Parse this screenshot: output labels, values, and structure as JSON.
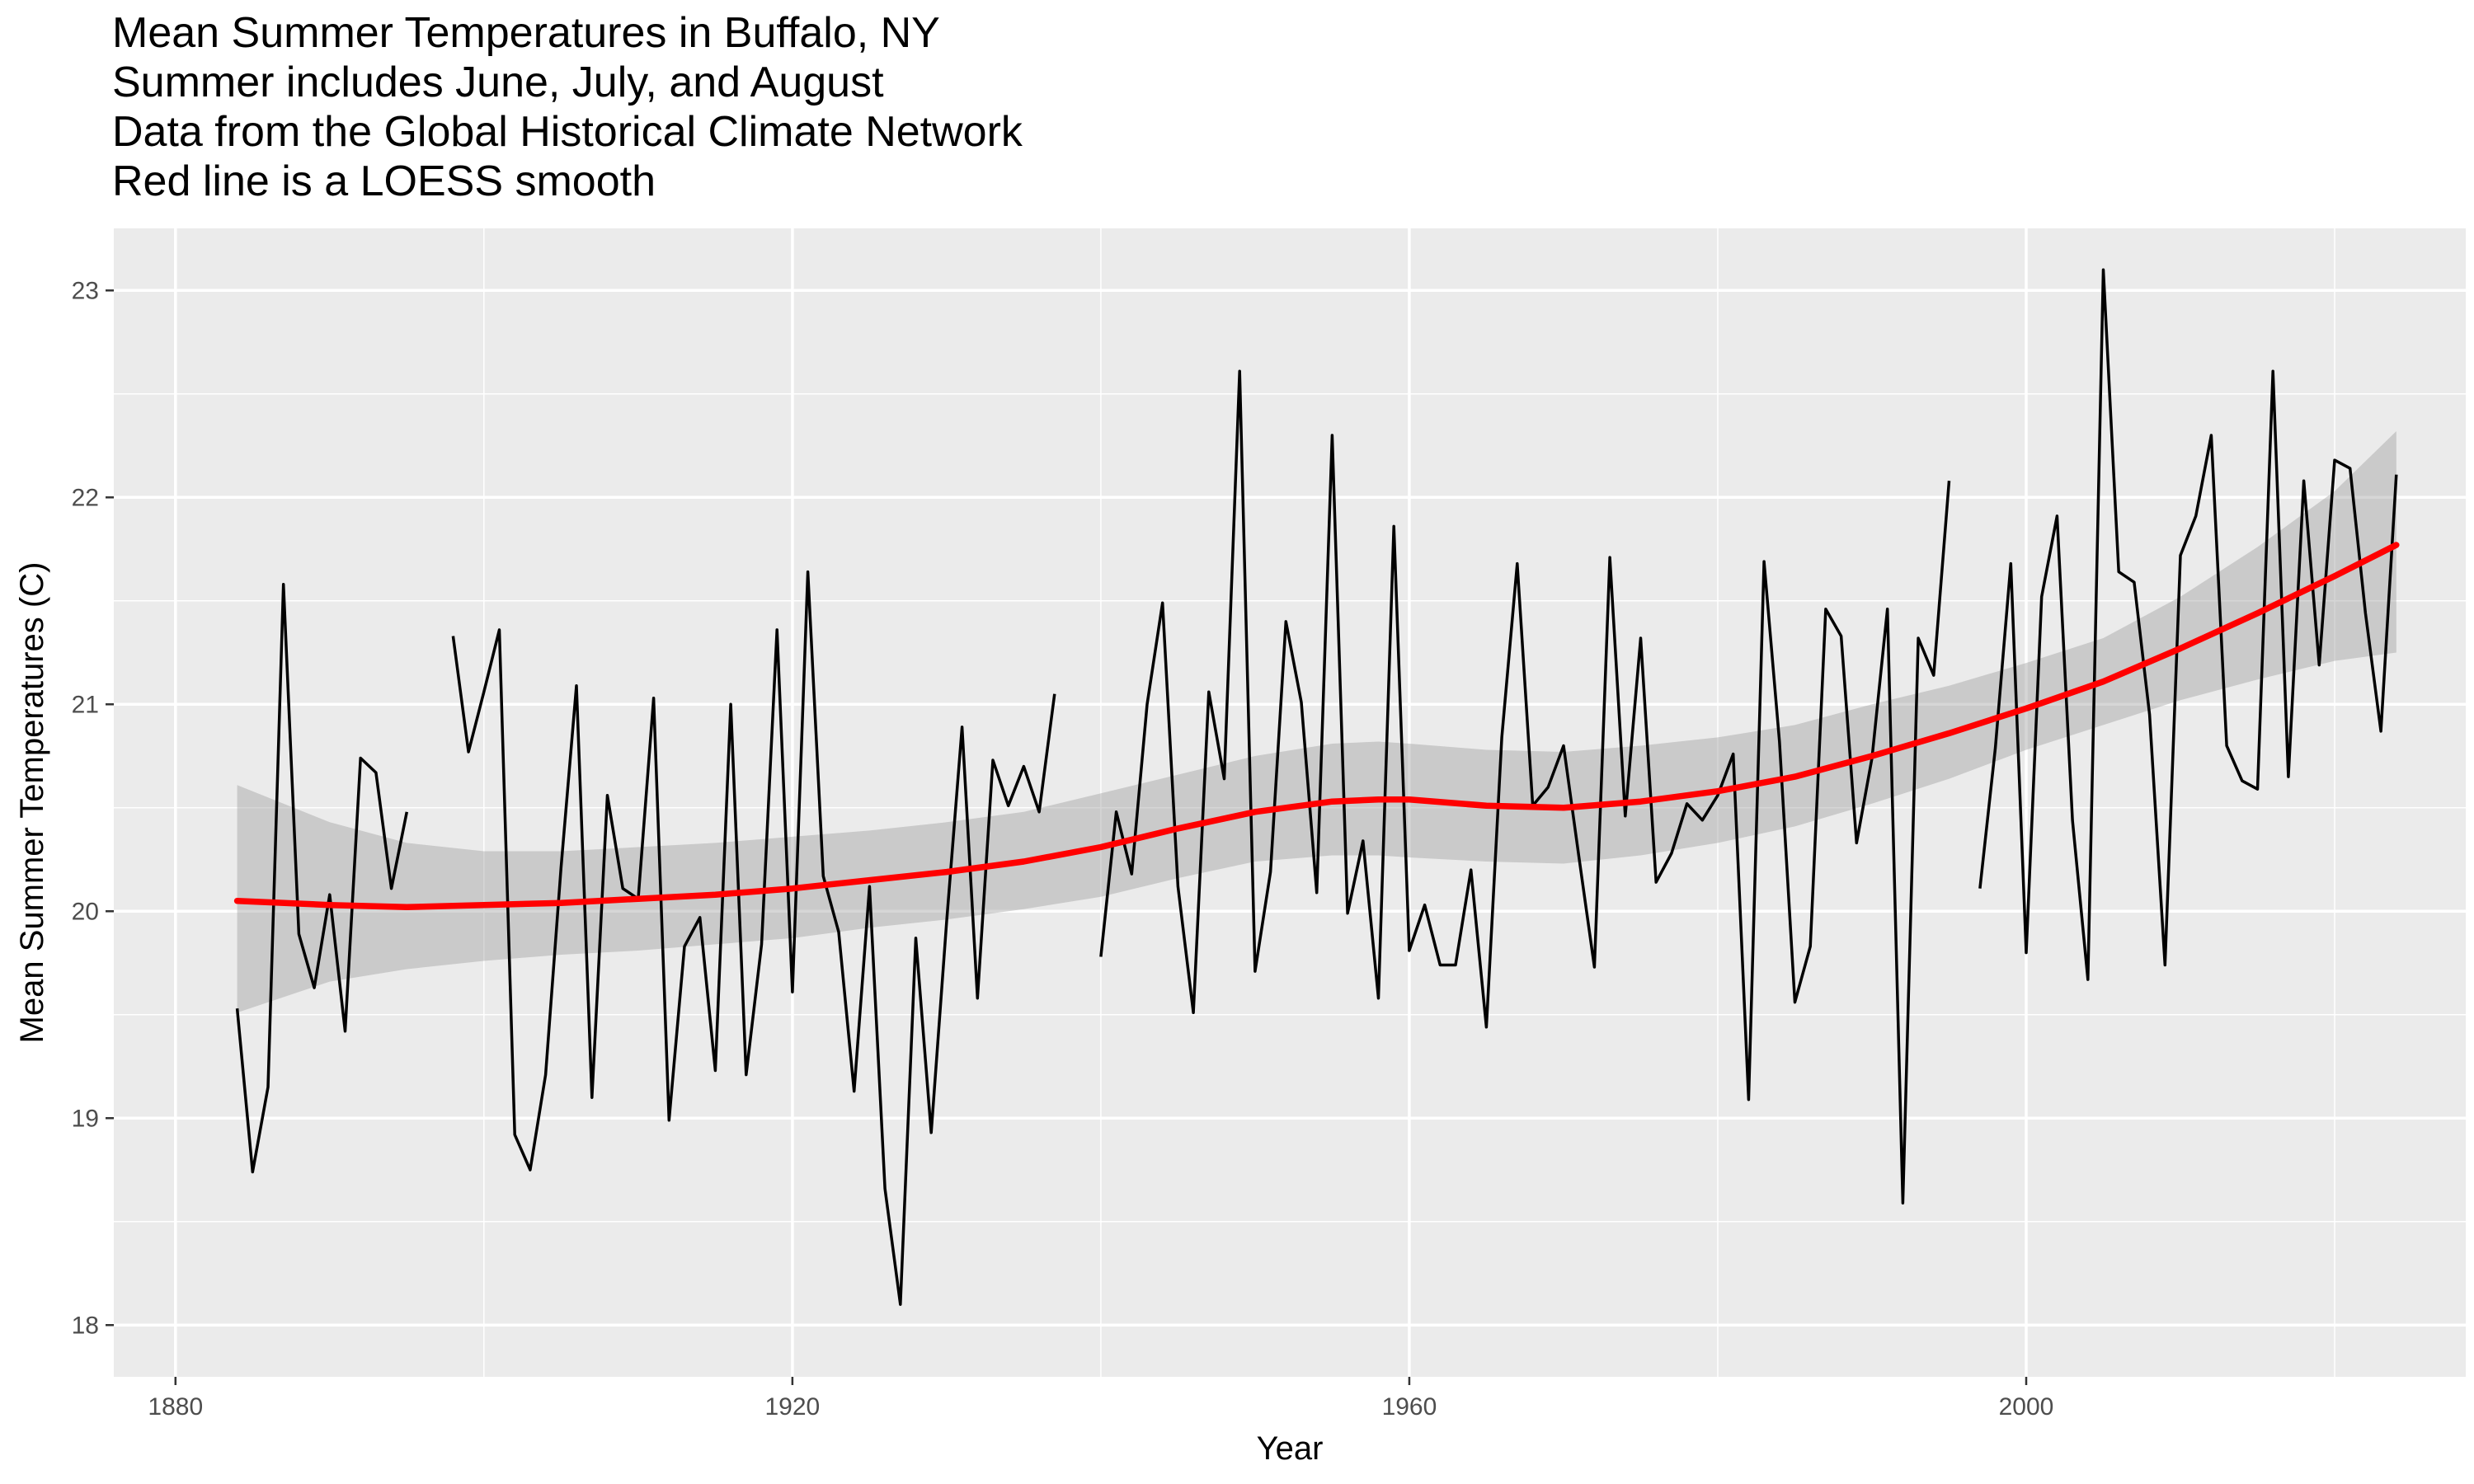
{
  "titles": [
    "Mean Summer Temperatures in Buffalo, NY",
    "Summer includes June, July, and August",
    "Data from the Global Historical Climate Network",
    "Red line is a LOESS smooth"
  ],
  "chart_data": {
    "type": "line",
    "xlabel": "Year",
    "ylabel": "Mean Summer Temperatures (C)",
    "xlim": [
      1876,
      2028.5
    ],
    "ylim": [
      17.75,
      23.3
    ],
    "x_ticks": [
      1880,
      1920,
      1960,
      2000
    ],
    "y_ticks": [
      18,
      19,
      20,
      21,
      22,
      23
    ],
    "grid": true,
    "background": "#ebebeb",
    "series": [
      {
        "color": "#000000",
        "segments": [
          [
            [
              1884,
              19.53
            ],
            [
              1885,
              18.74
            ],
            [
              1886,
              19.15
            ],
            [
              1887,
              21.58
            ],
            [
              1888,
              19.89
            ],
            [
              1889,
              19.63
            ],
            [
              1890,
              20.08
            ],
            [
              1891,
              19.42
            ],
            [
              1892,
              20.74
            ],
            [
              1893,
              20.67
            ],
            [
              1894,
              20.11
            ],
            [
              1895,
              20.48
            ]
          ],
          [
            [
              1898,
              21.33
            ],
            [
              1899,
              20.77
            ],
            [
              1900,
              21.06
            ],
            [
              1901,
              21.36
            ],
            [
              1902,
              18.92
            ],
            [
              1903,
              18.75
            ],
            [
              1904,
              19.21
            ],
            [
              1905,
              20.21
            ],
            [
              1906,
              21.09
            ],
            [
              1907,
              19.1
            ],
            [
              1908,
              20.56
            ],
            [
              1909,
              20.11
            ],
            [
              1910,
              20.06
            ],
            [
              1911,
              21.03
            ],
            [
              1912,
              18.99
            ],
            [
              1913,
              19.83
            ],
            [
              1914,
              19.97
            ],
            [
              1915,
              19.23
            ],
            [
              1916,
              21.0
            ],
            [
              1917,
              19.21
            ],
            [
              1918,
              19.84
            ],
            [
              1919,
              21.36
            ],
            [
              1920,
              19.61
            ],
            [
              1921,
              21.64
            ],
            [
              1922,
              20.17
            ],
            [
              1923,
              19.9
            ],
            [
              1924,
              19.13
            ],
            [
              1925,
              20.12
            ],
            [
              1926,
              18.66
            ],
            [
              1927,
              18.1
            ],
            [
              1928,
              19.87
            ],
            [
              1929,
              18.93
            ],
            [
              1930,
              19.95
            ],
            [
              1931,
              20.89
            ],
            [
              1932,
              19.58
            ],
            [
              1933,
              20.73
            ],
            [
              1934,
              20.51
            ],
            [
              1935,
              20.7
            ],
            [
              1936,
              20.48
            ],
            [
              1937,
              21.05
            ]
          ],
          [
            [
              1940,
              19.78
            ],
            [
              1941,
              20.48
            ],
            [
              1942,
              20.18
            ],
            [
              1943,
              21.0
            ],
            [
              1944,
              21.49
            ],
            [
              1945,
              20.12
            ],
            [
              1946,
              19.51
            ],
            [
              1947,
              21.06
            ],
            [
              1948,
              20.64
            ],
            [
              1949,
              22.61
            ],
            [
              1950,
              19.71
            ],
            [
              1951,
              20.19
            ],
            [
              1952,
              21.4
            ],
            [
              1953,
              21.01
            ],
            [
              1954,
              20.09
            ],
            [
              1955,
              22.3
            ],
            [
              1956,
              19.99
            ],
            [
              1957,
              20.34
            ],
            [
              1958,
              19.58
            ],
            [
              1959,
              21.86
            ],
            [
              1960,
              19.81
            ],
            [
              1961,
              20.03
            ],
            [
              1962,
              19.74
            ],
            [
              1963,
              19.74
            ],
            [
              1964,
              20.2
            ],
            [
              1965,
              19.44
            ],
            [
              1966,
              20.84
            ],
            [
              1967,
              21.68
            ],
            [
              1968,
              20.51
            ],
            [
              1969,
              20.6
            ],
            [
              1970,
              20.8
            ],
            [
              1971,
              20.26
            ],
            [
              1972,
              19.73
            ],
            [
              1973,
              21.71
            ],
            [
              1974,
              20.46
            ],
            [
              1975,
              21.32
            ],
            [
              1976,
              20.14
            ],
            [
              1977,
              20.28
            ],
            [
              1978,
              20.52
            ],
            [
              1979,
              20.44
            ],
            [
              1980,
              20.56
            ],
            [
              1981,
              20.76
            ],
            [
              1982,
              19.09
            ],
            [
              1983,
              21.69
            ],
            [
              1984,
              20.82
            ],
            [
              1985,
              19.56
            ],
            [
              1986,
              19.83
            ],
            [
              1987,
              21.46
            ],
            [
              1988,
              21.33
            ],
            [
              1989,
              20.33
            ],
            [
              1990,
              20.74
            ],
            [
              1991,
              21.46
            ],
            [
              1992,
              18.59
            ],
            [
              1993,
              21.32
            ],
            [
              1994,
              21.14
            ],
            [
              1995,
              22.08
            ]
          ],
          [
            [
              1997,
              20.11
            ],
            [
              1998,
              20.79
            ],
            [
              1999,
              21.68
            ],
            [
              2000,
              19.8
            ],
            [
              2001,
              21.52
            ],
            [
              2002,
              21.91
            ],
            [
              2003,
              20.44
            ],
            [
              2004,
              19.67
            ],
            [
              2005,
              23.1
            ],
            [
              2006,
              21.64
            ],
            [
              2007,
              21.59
            ],
            [
              2008,
              20.95
            ],
            [
              2009,
              19.74
            ],
            [
              2010,
              21.72
            ],
            [
              2011,
              21.91
            ],
            [
              2012,
              22.3
            ],
            [
              2013,
              20.8
            ],
            [
              2014,
              20.63
            ],
            [
              2015,
              20.59
            ],
            [
              2016,
              22.61
            ],
            [
              2017,
              20.65
            ],
            [
              2018,
              22.08
            ],
            [
              2019,
              21.19
            ],
            [
              2020,
              22.18
            ],
            [
              2021,
              22.14
            ],
            [
              2022,
              21.44
            ],
            [
              2023,
              20.87
            ],
            [
              2024,
              22.11
            ]
          ]
        ]
      },
      {
        "color": "#ff0000",
        "x": [
          1884,
          1890,
          1895,
          1900,
          1905,
          1910,
          1915,
          1920,
          1925,
          1930,
          1935,
          1940,
          1945,
          1950,
          1955,
          1958,
          1960,
          1965,
          1970,
          1975,
          1980,
          1985,
          1990,
          1995,
          2000,
          2005,
          2010,
          2015,
          2020,
          2024
        ],
        "y": [
          20.05,
          20.03,
          20.02,
          20.03,
          20.04,
          20.06,
          20.08,
          20.11,
          20.15,
          20.19,
          20.24,
          20.31,
          20.4,
          20.48,
          20.53,
          20.54,
          20.54,
          20.51,
          20.5,
          20.53,
          20.58,
          20.65,
          20.75,
          20.86,
          20.98,
          21.11,
          21.27,
          21.44,
          21.62,
          21.77
        ],
        "ci_lower": [
          19.51,
          19.66,
          19.72,
          19.76,
          19.79,
          19.81,
          19.84,
          19.87,
          19.92,
          19.96,
          20.01,
          20.07,
          20.16,
          20.24,
          20.27,
          20.27,
          20.26,
          20.24,
          20.23,
          20.27,
          20.33,
          20.41,
          20.52,
          20.64,
          20.78,
          20.9,
          21.02,
          21.12,
          21.21,
          21.25
        ],
        "ci_upper": [
          20.61,
          20.43,
          20.33,
          20.29,
          20.29,
          20.31,
          20.33,
          20.36,
          20.39,
          20.43,
          20.48,
          20.57,
          20.66,
          20.75,
          20.81,
          20.82,
          20.81,
          20.78,
          20.77,
          20.8,
          20.84,
          20.9,
          21.0,
          21.09,
          21.2,
          21.32,
          21.52,
          21.76,
          22.03,
          22.32
        ]
      }
    ],
    "band_color": "#999999"
  }
}
